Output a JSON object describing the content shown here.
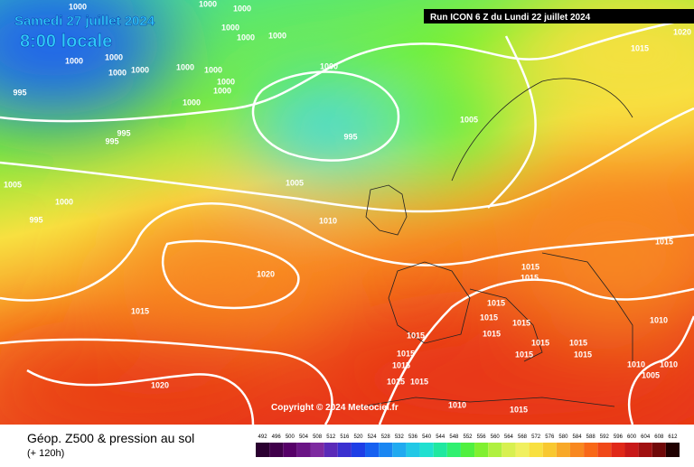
{
  "header": {
    "date": "Samedi 27 juillet 2024",
    "time": "8:00 locale",
    "run": "Run ICON 6 Z du Lundi 22 juillet 2024",
    "copyright": "Copyright © 2024 Meteociel.fr"
  },
  "footer": {
    "title": "Géop. Z500 & pression au sol",
    "lead": "(+ 120h)"
  },
  "isobar_labels": [
    "1000",
    "1000",
    "1000",
    "1000",
    "1000",
    "1000",
    "1000",
    "1000",
    "1000",
    "1000",
    "1000",
    "1000",
    "1000",
    "1000",
    "1000",
    "995",
    "995",
    "995",
    "1000",
    "995",
    "1005",
    "1005",
    "1000",
    "995",
    "1005",
    "1010",
    "1015",
    "1020",
    "1015",
    "1020",
    "1015",
    "1015",
    "1015",
    "1015",
    "1015",
    "1015",
    "1015",
    "1015",
    "1015",
    "1015",
    "1015",
    "1015",
    "1015",
    "1015",
    "1015",
    "1015",
    "1010",
    "1010",
    "1005",
    "1010",
    "1010",
    "1015",
    "1020"
  ],
  "legend": {
    "values": [
      492,
      496,
      500,
      504,
      508,
      512,
      516,
      520,
      524,
      528,
      532,
      536,
      540,
      544,
      548,
      552,
      556,
      560,
      564,
      568,
      572,
      576,
      580,
      584,
      588,
      592,
      596,
      600,
      604,
      608,
      612
    ],
    "colors": [
      "#2a0030",
      "#40004a",
      "#560068",
      "#6a1485",
      "#7d2aa0",
      "#5a2ab8",
      "#3a30d0",
      "#1e3ee6",
      "#1660f0",
      "#1a86f2",
      "#20aaf0",
      "#22c8e6",
      "#20e0d0",
      "#20e8a0",
      "#30f070",
      "#50f040",
      "#80f030",
      "#b0f040",
      "#d8f050",
      "#f0f060",
      "#f8e040",
      "#f8c830",
      "#f8a828",
      "#f88820",
      "#f86818",
      "#f04818",
      "#e02818",
      "#c81818",
      "#a01010",
      "#700808",
      "#200000"
    ]
  }
}
